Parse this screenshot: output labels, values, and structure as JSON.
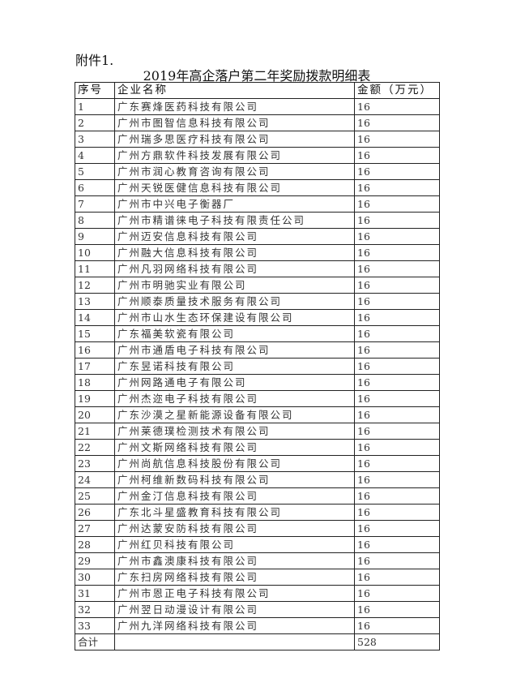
{
  "attachment_label": "附件1.",
  "title": "2019年高企落户第二年奖励拨款明细表",
  "headers": {
    "no": "序号",
    "name": "企业名称",
    "amount": "金额（万元）"
  },
  "rows": [
    {
      "no": "1",
      "name": "广东赛烽医药科技有限公司",
      "amount": "16"
    },
    {
      "no": "2",
      "name": "广州市图智信息科技有限公司",
      "amount": "16"
    },
    {
      "no": "3",
      "name": "广州瑞多思医疗科技有限公司",
      "amount": "16"
    },
    {
      "no": "4",
      "name": "广州方鼎软件科技发展有限公司",
      "amount": "16"
    },
    {
      "no": "5",
      "name": "广州市润心教育咨询有限公司",
      "amount": "16"
    },
    {
      "no": "6",
      "name": "广州天锐医健信息科技有限公司",
      "amount": "16"
    },
    {
      "no": "7",
      "name": "广州市中兴电子衡器厂",
      "amount": "16"
    },
    {
      "no": "8",
      "name": "广州市精谱徕电子科技有限责任公司",
      "amount": "16"
    },
    {
      "no": "9",
      "name": "广州迈安信息科技有限公司",
      "amount": "16"
    },
    {
      "no": "10",
      "name": "广州融大信息科技有限公司",
      "amount": "16"
    },
    {
      "no": "11",
      "name": "广州凡羽网络科技有限公司",
      "amount": "16"
    },
    {
      "no": "12",
      "name": "广州市明驰实业有限公司",
      "amount": "16"
    },
    {
      "no": "13",
      "name": "广州顺泰质量技术服务有限公司",
      "amount": "16"
    },
    {
      "no": "14",
      "name": "广州市山水生态环保建设有限公司",
      "amount": "16"
    },
    {
      "no": "15",
      "name": "广东福美软瓷有限公司",
      "amount": "16"
    },
    {
      "no": "16",
      "name": "广州市通盾电子科技有限公司",
      "amount": "16"
    },
    {
      "no": "17",
      "name": "广东昱诺科技有限公司",
      "amount": "16"
    },
    {
      "no": "18",
      "name": "广州网路通电子有限公司",
      "amount": "16"
    },
    {
      "no": "19",
      "name": "广州杰迩电子科技有限公司",
      "amount": "16"
    },
    {
      "no": "20",
      "name": "广东沙漠之星新能源设备有限公司",
      "amount": "16"
    },
    {
      "no": "21",
      "name": "广州莱德璞检测技术有限公司",
      "amount": "16"
    },
    {
      "no": "22",
      "name": "广州文斯网络科技有限公司",
      "amount": "16"
    },
    {
      "no": "23",
      "name": "广州尚航信息科技股份有限公司",
      "amount": "16"
    },
    {
      "no": "24",
      "name": "广州柯维新数码科技有限公司",
      "amount": "16"
    },
    {
      "no": "25",
      "name": "广州金汀信息科技有限公司",
      "amount": "16"
    },
    {
      "no": "26",
      "name": "广东北斗星盛教育科技有限公司",
      "amount": "16"
    },
    {
      "no": "27",
      "name": "广州达蒙安防科技有限公司",
      "amount": "16"
    },
    {
      "no": "28",
      "name": "广州红贝科技有限公司",
      "amount": "16"
    },
    {
      "no": "29",
      "name": "广州市鑫澳康科技有限公司",
      "amount": "16"
    },
    {
      "no": "30",
      "name": "广东扫房网络科技有限公司",
      "amount": "16"
    },
    {
      "no": "31",
      "name": "广州市恩正电子科技有限公司",
      "amount": "16"
    },
    {
      "no": "32",
      "name": "广州翌日动漫设计有限公司",
      "amount": "16"
    },
    {
      "no": "33",
      "name": "广州九洋网络科技有限公司",
      "amount": "16"
    }
  ],
  "total": {
    "label": "合计",
    "name": "",
    "amount": "528"
  }
}
